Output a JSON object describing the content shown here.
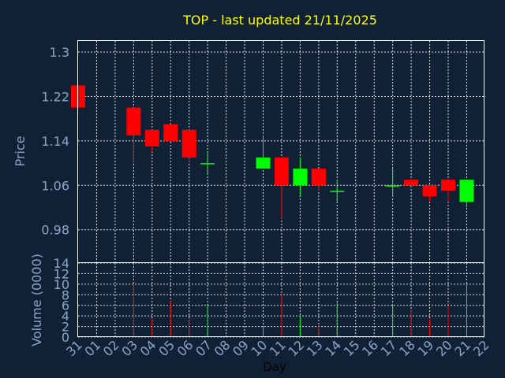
{
  "title": "TOP - last updated 21/11/2025",
  "colors": {
    "background": "#102035",
    "title": "#ffff00",
    "tick": "#8aa6c8",
    "up": "#00ff00",
    "down": "#ff0000",
    "grid": "#ffffff"
  },
  "chart_data": [
    {
      "type": "candlestick",
      "ylabel": "Price",
      "ylim": [
        0.92,
        1.32
      ],
      "yticks": [
        "1.3",
        "1.22",
        "1.14",
        "1.06",
        "0.98"
      ],
      "yticks_values": [
        1.3,
        1.22,
        1.14,
        1.06,
        0.98
      ],
      "grid": true,
      "categories": [
        "31",
        "01",
        "02",
        "03",
        "04",
        "05",
        "06",
        "07",
        "08",
        "09",
        "10",
        "11",
        "12",
        "13",
        "14",
        "15",
        "16",
        "17",
        "18",
        "19",
        "20",
        "21",
        "22"
      ],
      "candles": [
        {
          "day": "31",
          "open": 1.24,
          "high": 1.24,
          "low": 1.2,
          "close": 1.2
        },
        {
          "day": "03",
          "open": 1.2,
          "high": 1.2,
          "low": 1.1,
          "close": 1.15
        },
        {
          "day": "04",
          "open": 1.16,
          "high": 1.16,
          "low": 1.12,
          "close": 1.13
        },
        {
          "day": "05",
          "open": 1.17,
          "high": 1.17,
          "low": 1.14,
          "close": 1.14
        },
        {
          "day": "06",
          "open": 1.16,
          "high": 1.16,
          "low": 1.1,
          "close": 1.11
        },
        {
          "day": "07",
          "open": 1.1,
          "high": 1.12,
          "low": 1.08,
          "close": 1.1
        },
        {
          "day": "10",
          "open": 1.09,
          "high": 1.15,
          "low": 1.09,
          "close": 1.11
        },
        {
          "day": "11",
          "open": 1.11,
          "high": 1.11,
          "low": 1.0,
          "close": 1.06
        },
        {
          "day": "12",
          "open": 1.06,
          "high": 1.11,
          "low": 1.04,
          "close": 1.09
        },
        {
          "day": "13",
          "open": 1.09,
          "high": 1.09,
          "low": 1.05,
          "close": 1.06
        },
        {
          "day": "14",
          "open": 1.05,
          "high": 1.07,
          "low": 1.03,
          "close": 1.05
        },
        {
          "day": "17",
          "open": 1.06,
          "high": 1.09,
          "low": 1.04,
          "close": 1.06
        },
        {
          "day": "18",
          "open": 1.07,
          "high": 1.07,
          "low": 1.06,
          "close": 1.06
        },
        {
          "day": "19",
          "open": 1.06,
          "high": 1.06,
          "low": 1.03,
          "close": 1.04
        },
        {
          "day": "20",
          "open": 1.07,
          "high": 1.07,
          "low": 1.03,
          "close": 1.05
        },
        {
          "day": "21",
          "open": 1.03,
          "high": 1.07,
          "low": 1.02,
          "close": 1.07
        }
      ]
    },
    {
      "type": "bar",
      "ylabel": "Volume (0000)",
      "xlabel": "Day",
      "ylim": [
        0,
        14
      ],
      "yticks": [
        "14",
        "12",
        "10",
        "8",
        "6",
        "4",
        "2",
        "0"
      ],
      "yticks_values": [
        14,
        12,
        10,
        8,
        6,
        4,
        2,
        0
      ],
      "grid": true,
      "bars": [
        {
          "day": "03",
          "value": 10.0,
          "direction": "down"
        },
        {
          "day": "04",
          "value": 3.5,
          "direction": "down"
        },
        {
          "day": "05",
          "value": 7.0,
          "direction": "down"
        },
        {
          "day": "06",
          "value": 3.5,
          "direction": "down"
        },
        {
          "day": "07",
          "value": 6.0,
          "direction": "up"
        },
        {
          "day": "10",
          "value": 2.0,
          "direction": "up"
        },
        {
          "day": "11",
          "value": 8.0,
          "direction": "down"
        },
        {
          "day": "12",
          "value": 4.0,
          "direction": "up"
        },
        {
          "day": "13",
          "value": 2.5,
          "direction": "down"
        },
        {
          "day": "14",
          "value": 6.5,
          "direction": "up"
        },
        {
          "day": "17",
          "value": 6.0,
          "direction": "up"
        },
        {
          "day": "18",
          "value": 5.0,
          "direction": "down"
        },
        {
          "day": "19",
          "value": 3.5,
          "direction": "down"
        },
        {
          "day": "20",
          "value": 6.0,
          "direction": "down"
        },
        {
          "day": "21",
          "value": 10.0,
          "direction": "up"
        }
      ]
    }
  ]
}
